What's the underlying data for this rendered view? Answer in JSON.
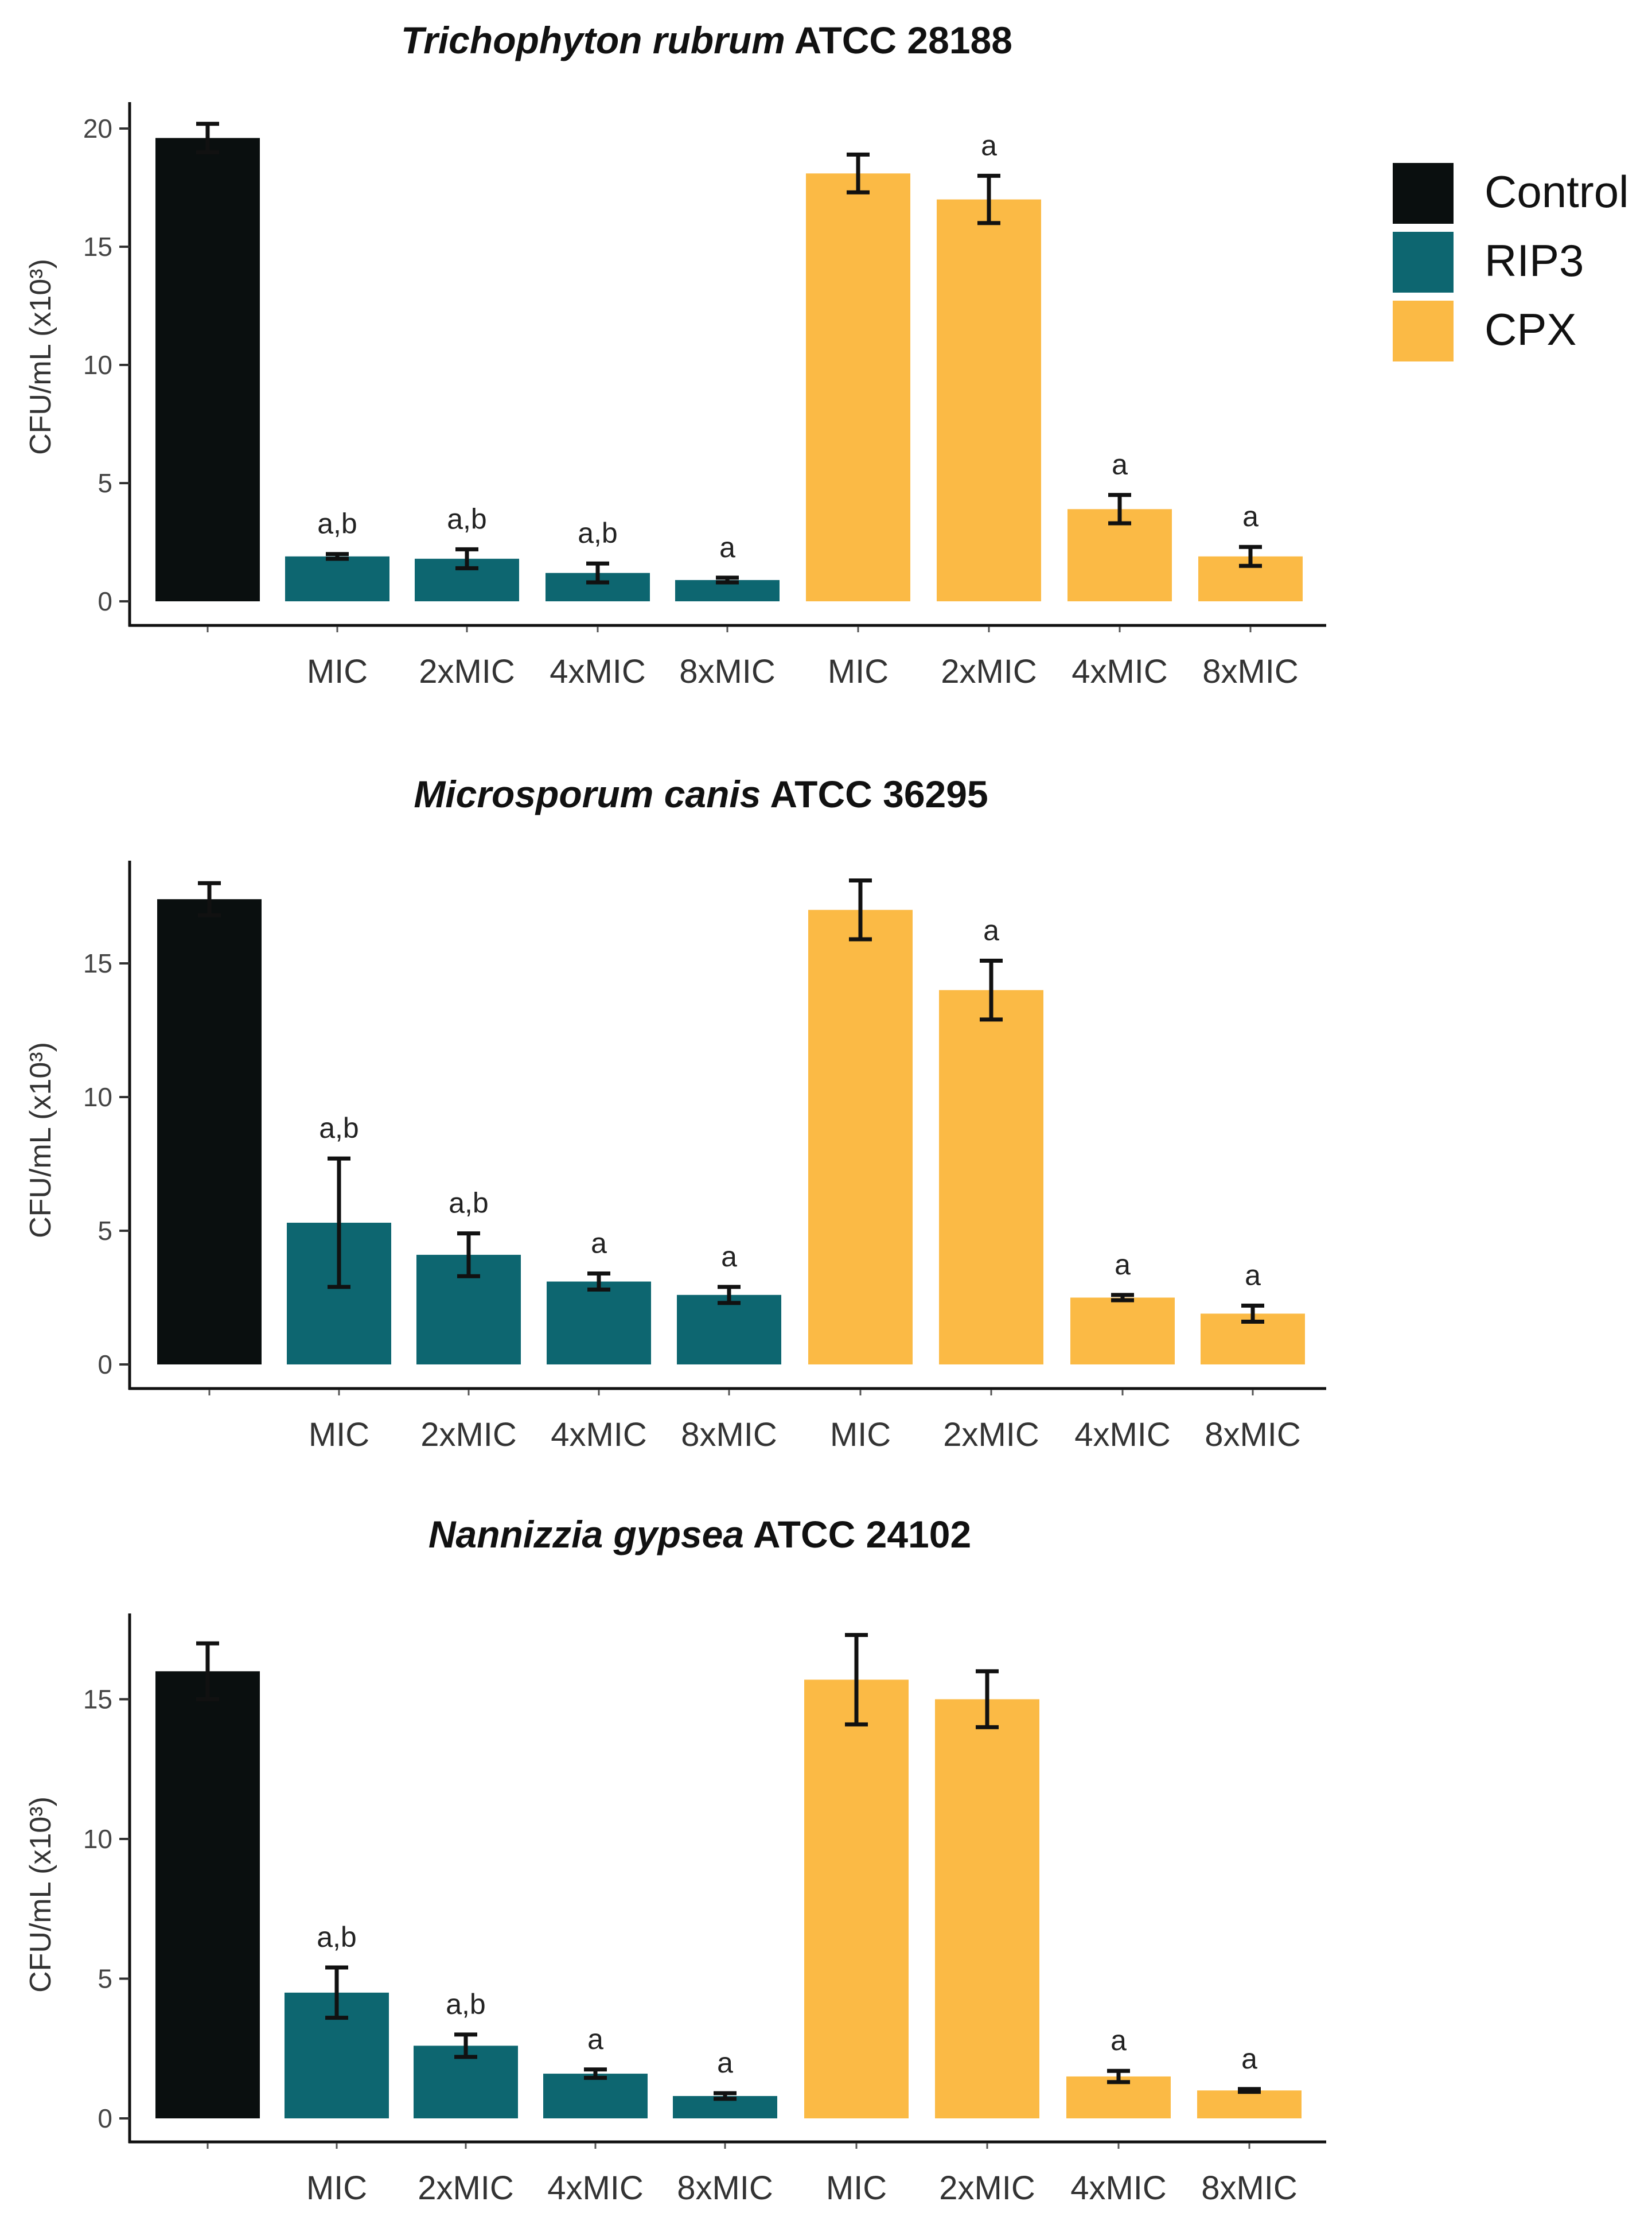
{
  "legend": {
    "items": [
      {
        "label": "Control",
        "color": "#0a0f0f"
      },
      {
        "label": "RIP3",
        "color": "#0d6670"
      },
      {
        "label": "CPX",
        "color": "#fbba45"
      }
    ]
  },
  "chart_data": [
    {
      "type": "bar",
      "title_italic": "Trichophyton rubrum",
      "title_rest": " ATCC 28188",
      "ylabel": "CFU/mL (x10³)",
      "xlabel": "",
      "ylim": [
        0,
        21
      ],
      "yticks": [
        0,
        5,
        10,
        15,
        20
      ],
      "categories": [
        "",
        "MIC",
        "2xMIC",
        "4xMIC",
        "8xMIC",
        "MIC",
        "2xMIC",
        "4xMIC",
        "8xMIC"
      ],
      "groups": [
        "Control",
        "RIP3",
        "RIP3",
        "RIP3",
        "RIP3",
        "CPX",
        "CPX",
        "CPX",
        "CPX"
      ],
      "values": [
        19.6,
        1.9,
        1.8,
        1.2,
        0.9,
        18.1,
        17.0,
        3.9,
        1.9
      ],
      "errors": [
        0.6,
        0.1,
        0.4,
        0.4,
        0.1,
        0.8,
        1.0,
        0.6,
        0.4
      ],
      "annotations": [
        "",
        "a,b",
        "a,b",
        "a,b",
        "a",
        "",
        "a",
        "a",
        "a"
      ]
    },
    {
      "type": "bar",
      "title_italic": "Microsporum canis",
      "title_rest": " ATCC 36295",
      "ylabel": "CFU/mL (x10³)",
      "xlabel": "",
      "ylim": [
        0,
        19
      ],
      "yticks": [
        0,
        5,
        10,
        15
      ],
      "categories": [
        "",
        "MIC",
        "2xMIC",
        "4xMIC",
        "8xMIC",
        "MIC",
        "2xMIC",
        "4xMIC",
        "8xMIC"
      ],
      "groups": [
        "Control",
        "RIP3",
        "RIP3",
        "RIP3",
        "RIP3",
        "CPX",
        "CPX",
        "CPX",
        "CPX"
      ],
      "values": [
        17.4,
        5.3,
        4.1,
        3.1,
        2.6,
        17.0,
        14.0,
        2.5,
        1.9
      ],
      "errors": [
        0.6,
        2.4,
        0.8,
        0.3,
        0.3,
        1.1,
        1.1,
        0.1,
        0.3
      ],
      "annotations": [
        "",
        "a,b",
        "a,b",
        "a",
        "a",
        "",
        "a",
        "a",
        "a"
      ]
    },
    {
      "type": "bar",
      "title_italic": "Nannizzia gypsea",
      "title_rest": " ATCC 24102",
      "ylabel": "CFU/mL (x10³)",
      "xlabel": "",
      "ylim": [
        0,
        18
      ],
      "yticks": [
        0,
        5,
        10,
        15
      ],
      "categories": [
        "",
        "MIC",
        "2xMIC",
        "4xMIC",
        "8xMIC",
        "MIC",
        "2xMIC",
        "4xMIC",
        "8xMIC"
      ],
      "groups": [
        "Control",
        "RIP3",
        "RIP3",
        "RIP3",
        "RIP3",
        "CPX",
        "CPX",
        "CPX",
        "CPX"
      ],
      "values": [
        16.0,
        4.5,
        2.6,
        1.6,
        0.8,
        15.7,
        15.0,
        1.5,
        1.0
      ],
      "errors": [
        1.0,
        0.9,
        0.4,
        0.15,
        0.1,
        1.6,
        1.0,
        0.2,
        0.05
      ],
      "annotations": [
        "",
        "a,b",
        "a,b",
        "a",
        "a",
        "",
        "",
        "a",
        "a"
      ]
    }
  ]
}
